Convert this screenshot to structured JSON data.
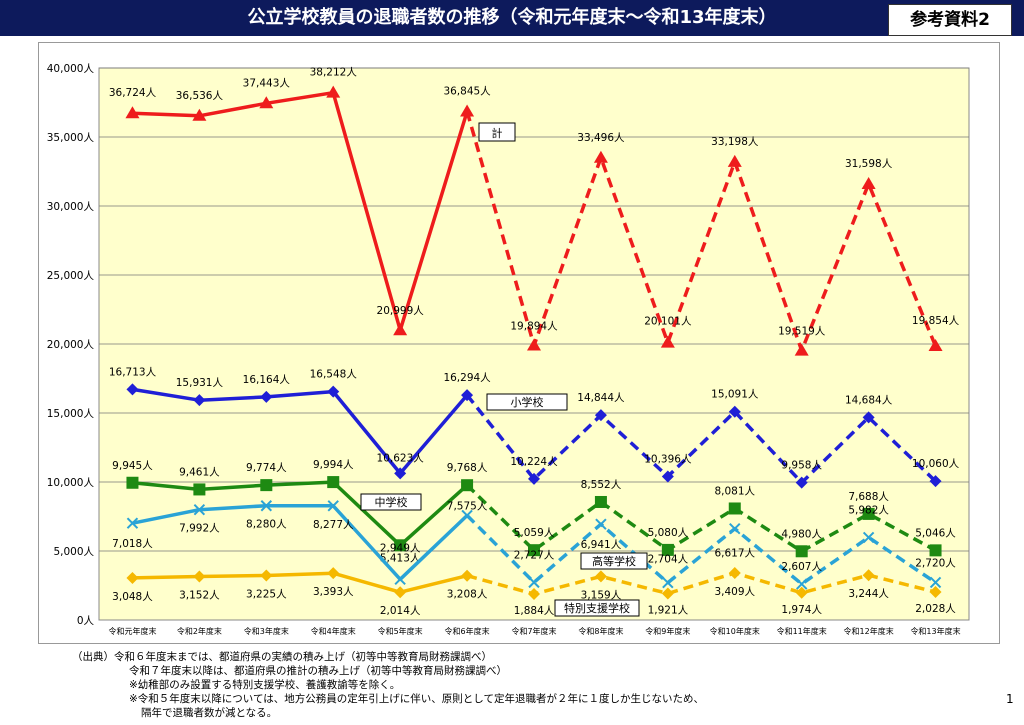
{
  "header": {
    "title": "公立学校教員の退職者数の推移（令和元年度末～令和13年度末）",
    "ref_label": "参考資料2"
  },
  "chart_data": {
    "type": "line",
    "title": "公立学校教員の退職者数の推移（令和元年度末～令和13年度末）",
    "categories": [
      "令和元年度末",
      "令和2年度末",
      "令和3年度末",
      "令和4年度末",
      "令和5年度末",
      "令和6年度末",
      "令和7年度末",
      "令和8年度末",
      "令和9年度末",
      "令和10年度末",
      "令和11年度末",
      "令和12年度末",
      "令和13年度末"
    ],
    "y_ticks": [
      "0人",
      "5,000人",
      "10,000人",
      "15,000人",
      "20,000人",
      "25,000人",
      "30,000人",
      "35,000人",
      "40,000人"
    ],
    "ylim": [
      0,
      40000
    ],
    "actual_until_index": 5,
    "plot_background": "#ffffcc",
    "series": [
      {
        "name": "計",
        "color": "#ee1c1c",
        "marker": "triangle",
        "values": [
          36724,
          36536,
          37443,
          38212,
          20999,
          36845,
          19894,
          33496,
          20101,
          33198,
          19519,
          31598,
          19854
        ],
        "labels": [
          "36,724人",
          "36,536人",
          "37,443人",
          "38,212人",
          "20,999人",
          "36,845人",
          "19,894人",
          "33,496人",
          "20,101人",
          "33,198人",
          "19,519人",
          "31,598人",
          "19,854人"
        ]
      },
      {
        "name": "小学校",
        "color": "#1f1fd6",
        "marker": "diamond",
        "values": [
          16713,
          15931,
          16164,
          16548,
          10623,
          16294,
          10224,
          14844,
          10396,
          15091,
          9958,
          14684,
          10060
        ],
        "labels": [
          "16,713人",
          "15,931人",
          "16,164人",
          "16,548人",
          "10,623人",
          "16,294人",
          "10,224人",
          "14,844人",
          "10,396人",
          "15,091人",
          "9,958人",
          "14,684人",
          "10,060人"
        ]
      },
      {
        "name": "中学校",
        "color": "#1e8a12",
        "marker": "square",
        "values": [
          9945,
          9461,
          9774,
          9994,
          5413,
          9768,
          5059,
          8552,
          5080,
          8081,
          4980,
          7688,
          5046
        ],
        "labels": [
          "9,945人",
          "9,461人",
          "9,774人",
          "9,994人",
          "5,413人",
          "9,768人",
          "5,059人",
          "8,552人",
          "5,080人",
          "8,081人",
          "4,980人",
          "7,688人",
          "5,046人"
        ]
      },
      {
        "name": "高等学校",
        "color": "#2aa3d6",
        "marker": "x",
        "values": [
          7018,
          7992,
          8280,
          8277,
          2949,
          7575,
          2727,
          6941,
          2704,
          6617,
          2607,
          5982,
          2720
        ],
        "labels": [
          "7,018人",
          "7,992人",
          "8,280人",
          "8,277人",
          "2,949人",
          "7,575人",
          "2,727人",
          "6,941人",
          "2,704人",
          "6,617人",
          "2,607人",
          "5,982人",
          "2,720人"
        ]
      },
      {
        "name": "特別支援学校",
        "color": "#f5b800",
        "marker": "diamond",
        "values": [
          3048,
          3152,
          3225,
          3393,
          2014,
          3208,
          1884,
          3159,
          1921,
          3409,
          1974,
          3244,
          2028
        ],
        "labels": [
          "3,048人",
          "3,152人",
          "3,225人",
          "3,393人",
          "2,014人",
          "3,208人",
          "1,884人",
          "3,159人",
          "1,921人",
          "3,409人",
          "1,974人",
          "3,244人",
          "2,028人"
        ]
      }
    ]
  },
  "notes": {
    "line1": "（出典）令和６年度末までは、都道府県の実績の積み上げ（初等中等教育局財務課調べ）",
    "line2": "令和７年度末以降は、都道府県の推計の積み上げ（初等中等教育局財務課調べ）",
    "line3": "※幼稚部のみ設置する特別支援学校、養護教諭等を除く。",
    "line4": "※令和５年度末以降については、地方公務員の定年引上げに伴い、原則として定年退職者が２年に１度しか生じないため、",
    "line5": "隔年で退職者数が減となる。"
  },
  "page_number": "1"
}
